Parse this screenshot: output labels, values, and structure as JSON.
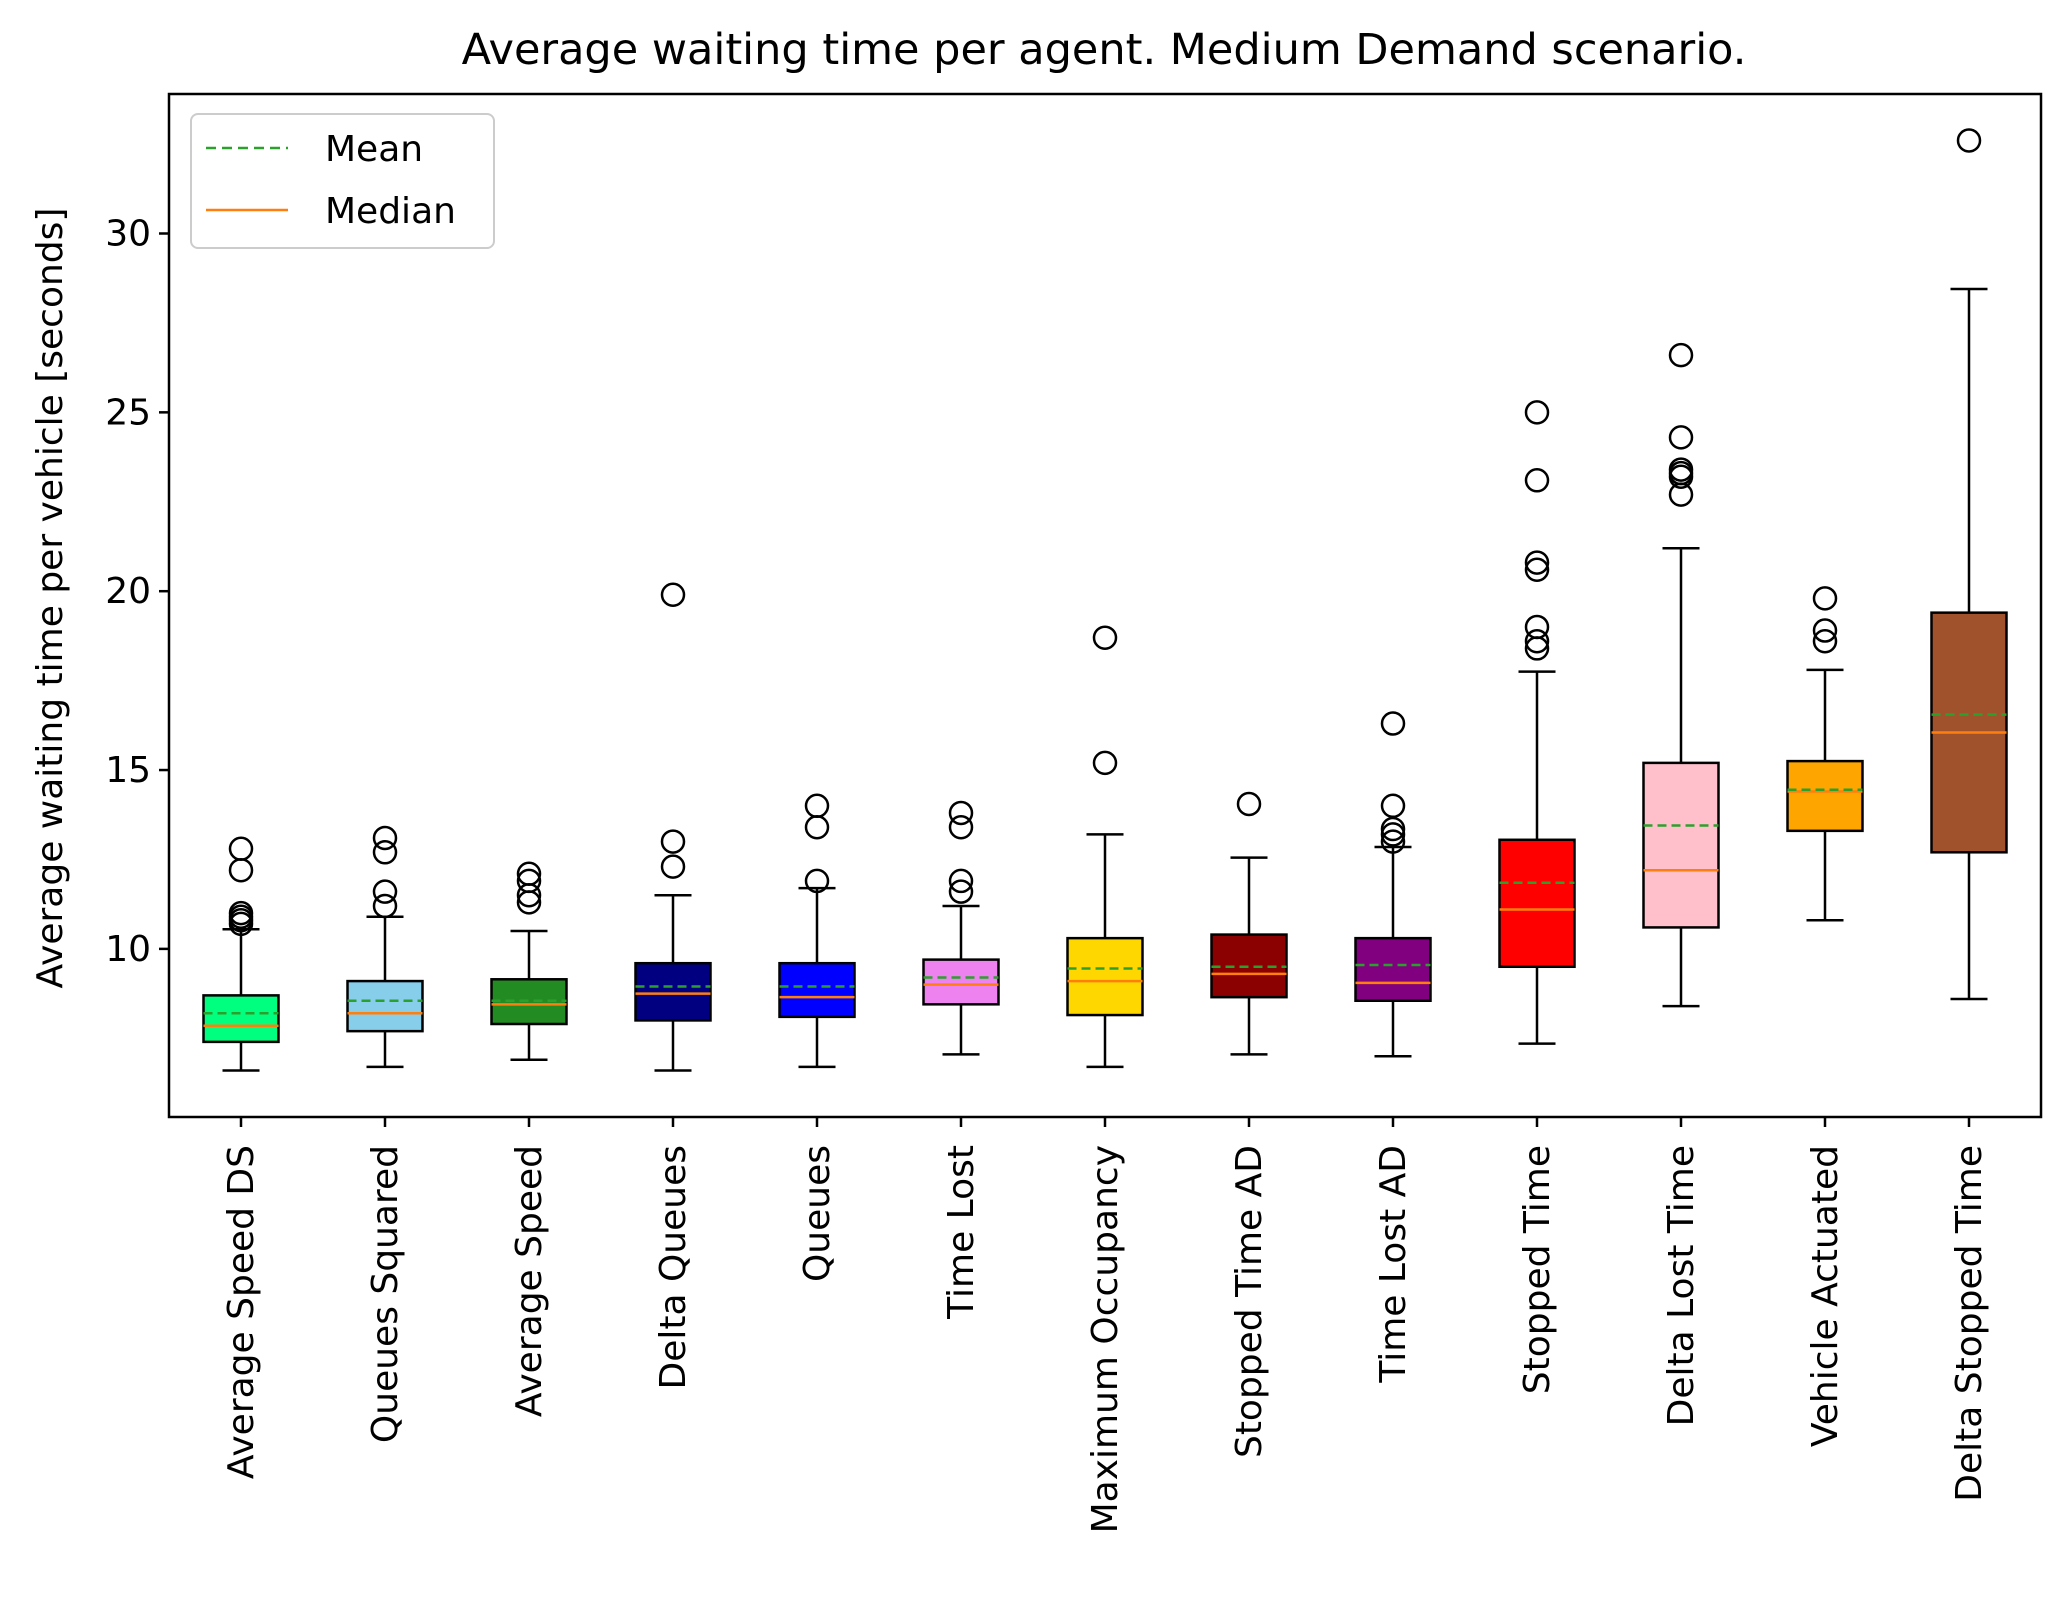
{
  "chart_data": {
    "type": "boxplot",
    "title": "Average waiting time per agent. Medium Demand scenario.",
    "xlabel": "",
    "ylabel": "Average waiting time per vehicle [seconds]",
    "ylim": [
      5.3,
      33.9
    ],
    "yticks": [
      "10",
      "15",
      "20",
      "25",
      "30"
    ],
    "grid": false,
    "legend": {
      "position": "top-left",
      "items": [
        {
          "label": "Mean",
          "color": "#2ca02c",
          "style": "dashed"
        },
        {
          "label": "Median",
          "color": "#ff7f0e",
          "style": "solid"
        }
      ]
    },
    "colors": {
      "mean": "#2ca02c",
      "median": "#ff7f0e",
      "frame": "#000000"
    },
    "categories": [
      "Average Speed DS",
      "Queues Squared",
      "Average Speed",
      "Delta Queues",
      "Queues",
      "Time Lost",
      "Maximum Occupancy",
      "Stopped Time AD",
      "Time Lost AD",
      "Stopped Time",
      "Delta Lost Time",
      "Vehicle Actuated",
      "Delta Stopped Time"
    ],
    "boxes": [
      {
        "name": "Average Speed DS",
        "color": "#00ff7f",
        "whisker_low": 6.6,
        "q1": 7.4,
        "median": 7.85,
        "mean": 8.2,
        "q3": 8.7,
        "whisker_high": 10.55,
        "outliers": [
          10.7,
          10.8,
          10.9,
          11.0,
          12.2,
          12.8
        ]
      },
      {
        "name": "Queues Squared",
        "color": "#87ceeb",
        "whisker_low": 6.7,
        "q1": 7.7,
        "median": 8.2,
        "mean": 8.55,
        "q3": 9.1,
        "whisker_high": 10.9,
        "outliers": [
          11.2,
          11.6,
          12.7,
          13.1
        ]
      },
      {
        "name": "Average Speed",
        "color": "#228b22",
        "whisker_low": 6.9,
        "q1": 7.9,
        "median": 8.45,
        "mean": 8.55,
        "q3": 9.15,
        "whisker_high": 10.5,
        "outliers": [
          11.3,
          11.5,
          11.9,
          12.1
        ]
      },
      {
        "name": "Delta Queues",
        "color": "#000080",
        "whisker_low": 6.6,
        "q1": 8.0,
        "median": 8.75,
        "mean": 8.95,
        "q3": 9.6,
        "whisker_high": 11.5,
        "outliers": [
          12.3,
          13.0,
          19.9
        ]
      },
      {
        "name": "Queues",
        "color": "#0000ff",
        "whisker_low": 6.7,
        "q1": 8.1,
        "median": 8.65,
        "mean": 8.95,
        "q3": 9.6,
        "whisker_high": 11.7,
        "outliers": [
          11.9,
          13.4,
          14.0
        ]
      },
      {
        "name": "Time Lost",
        "color": "#ee82ee",
        "whisker_low": 7.05,
        "q1": 8.45,
        "median": 9.0,
        "mean": 9.2,
        "q3": 9.7,
        "whisker_high": 11.2,
        "outliers": [
          11.6,
          11.9,
          13.4,
          13.8
        ]
      },
      {
        "name": "Maximum Occupancy",
        "color": "#ffd700",
        "whisker_low": 6.7,
        "q1": 8.15,
        "median": 9.1,
        "mean": 9.45,
        "q3": 10.3,
        "whisker_high": 13.2,
        "outliers": [
          15.2,
          18.7
        ]
      },
      {
        "name": "Stopped Time AD",
        "color": "#8b0000",
        "whisker_low": 7.05,
        "q1": 8.65,
        "median": 9.3,
        "mean": 9.5,
        "q3": 10.4,
        "whisker_high": 12.55,
        "outliers": [
          14.05
        ]
      },
      {
        "name": "Time Lost AD",
        "color": "#800080",
        "whisker_low": 7.0,
        "q1": 8.55,
        "median": 9.05,
        "mean": 9.55,
        "q3": 10.3,
        "whisker_high": 12.85,
        "outliers": [
          13.0,
          13.2,
          13.35,
          14.0,
          16.3
        ]
      },
      {
        "name": "Stopped Time",
        "color": "#ff0000",
        "whisker_low": 7.35,
        "q1": 9.5,
        "median": 11.1,
        "mean": 11.85,
        "q3": 13.05,
        "whisker_high": 17.75,
        "outliers": [
          18.4,
          18.6,
          19.0,
          20.6,
          20.8,
          23.1,
          25.0
        ]
      },
      {
        "name": "Delta Lost Time",
        "color": "#ffc0cb",
        "whisker_low": 8.4,
        "q1": 10.6,
        "median": 12.2,
        "mean": 13.45,
        "q3": 15.2,
        "whisker_high": 21.2,
        "outliers": [
          22.7,
          23.2,
          23.3,
          23.4,
          24.3,
          26.6
        ]
      },
      {
        "name": "Vehicle Actuated",
        "color": "#ffa500",
        "whisker_low": 10.8,
        "q1": 13.3,
        "median": 14.4,
        "mean": 14.45,
        "q3": 15.25,
        "whisker_high": 17.8,
        "outliers": [
          18.6,
          18.9,
          19.8
        ]
      },
      {
        "name": "Delta Stopped Time",
        "color": "#a0522d",
        "whisker_low": 8.6,
        "q1": 12.7,
        "median": 16.05,
        "mean": 16.55,
        "q3": 19.4,
        "whisker_high": 28.45,
        "outliers": [
          32.6
        ]
      }
    ]
  }
}
